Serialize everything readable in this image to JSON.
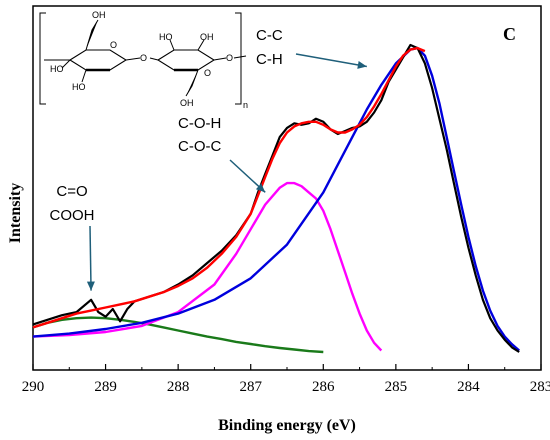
{
  "chart_data": {
    "type": "line",
    "title": "",
    "panel_label": "C",
    "xlabel": "Binding energy (eV)",
    "ylabel": "Intensity",
    "xlim": [
      290,
      283
    ],
    "x_reversed": true,
    "x_ticks": [
      "290",
      "289",
      "288",
      "287",
      "286",
      "285",
      "284",
      "283"
    ],
    "y_ticks": [],
    "ylim": [
      0,
      100
    ],
    "grid": false,
    "legend": "none",
    "annotations": [
      {
        "lines": [
          "C-C",
          "C-H"
        ],
        "arrow_to": {
          "x": 285.4,
          "y": 93
        }
      },
      {
        "lines": [
          "C-O-H",
          "C-O-C"
        ],
        "arrow_to": {
          "x": 286.8,
          "y": 52
        }
      },
      {
        "lines": [
          "C=O",
          "COOH"
        ],
        "arrow_to": {
          "x": 289.2,
          "y": 20
        }
      }
    ],
    "structure_labels": {
      "oh": "OH",
      "ho": "HO",
      "o": "O",
      "n": "n"
    },
    "series": [
      {
        "name": "",
        "role": "measured",
        "color": "#000000",
        "x": [
          290.0,
          289.8,
          289.6,
          289.4,
          289.2,
          289.1,
          289.0,
          288.9,
          288.8,
          288.7,
          288.6,
          288.4,
          288.2,
          288.0,
          287.8,
          287.6,
          287.4,
          287.2,
          287.0,
          286.9,
          286.8,
          286.7,
          286.6,
          286.5,
          286.4,
          286.3,
          286.2,
          286.1,
          286.0,
          285.9,
          285.8,
          285.7,
          285.6,
          285.5,
          285.4,
          285.3,
          285.2,
          285.1,
          285.0,
          284.9,
          284.8,
          284.7,
          284.6,
          284.5,
          284.4,
          284.3,
          284.2,
          284.1,
          284.0,
          283.9,
          283.8,
          283.7,
          283.6,
          283.5,
          283.4,
          283.3
        ],
        "y": [
          9.0,
          10.5,
          12.0,
          13.0,
          17.0,
          13.0,
          11.5,
          14.0,
          10.0,
          14.0,
          16.5,
          18.0,
          19.5,
          22.0,
          25.0,
          29.0,
          33.0,
          38.0,
          45.0,
          52.0,
          58.0,
          64.0,
          70.0,
          73.0,
          74.5,
          74.0,
          74.5,
          76.0,
          75.0,
          72.5,
          71.0,
          72.0,
          73.0,
          73.5,
          75.0,
          78.0,
          82.0,
          88.0,
          92.0,
          96.0,
          100.0,
          99.0,
          94.0,
          86.0,
          76.0,
          66.0,
          55.0,
          44.0,
          34.0,
          25.0,
          17.0,
          11.0,
          7.0,
          4.0,
          1.5,
          0.0
        ]
      },
      {
        "name": "",
        "role": "envelope",
        "color": "#ff0000",
        "x": [
          290.0,
          289.8,
          289.6,
          289.4,
          289.2,
          289.0,
          288.8,
          288.6,
          288.4,
          288.2,
          288.0,
          287.8,
          287.6,
          287.4,
          287.2,
          287.0,
          286.9,
          286.8,
          286.7,
          286.6,
          286.5,
          286.4,
          286.3,
          286.2,
          286.1,
          286.0,
          285.9,
          285.8,
          285.7,
          285.6,
          285.5,
          285.4,
          285.3,
          285.2,
          285.1,
          285.0,
          284.9,
          284.8,
          284.7,
          284.6
        ],
        "y": [
          8.0,
          9.5,
          11.0,
          12.5,
          13.5,
          14.5,
          15.5,
          16.5,
          18.0,
          19.5,
          21.5,
          24.0,
          27.5,
          32.0,
          37.5,
          45.0,
          51.0,
          57.0,
          63.0,
          68.0,
          71.5,
          73.5,
          74.5,
          75.0,
          75.0,
          74.0,
          72.5,
          71.5,
          71.5,
          72.5,
          74.0,
          76.5,
          80.0,
          84.0,
          88.5,
          93.0,
          96.5,
          98.5,
          99.0,
          98.0
        ]
      },
      {
        "name": "",
        "role": "C-C/C-H component",
        "color": "#0000dd",
        "x": [
          290.0,
          289.5,
          289.0,
          288.5,
          288.0,
          287.5,
          287.0,
          286.5,
          286.0,
          285.8,
          285.6,
          285.4,
          285.2,
          285.0,
          284.8,
          284.7,
          284.6,
          284.5,
          284.4,
          284.3,
          284.2,
          284.1,
          284.0,
          283.9,
          283.8,
          283.7,
          283.6,
          283.5,
          283.4,
          283.3
        ],
        "y": [
          5.0,
          6.0,
          7.5,
          9.5,
          12.5,
          17.0,
          24.0,
          35.0,
          52.0,
          61.0,
          70.0,
          79.0,
          87.0,
          94.0,
          98.5,
          99.0,
          96.5,
          90.0,
          81.0,
          70.0,
          59.0,
          48.0,
          37.5,
          28.0,
          20.0,
          13.5,
          8.5,
          5.0,
          2.5,
          0.5
        ]
      },
      {
        "name": "",
        "role": "C-O-H/C-O-C component",
        "color": "#ff00ff",
        "x": [
          290.0,
          289.5,
          289.0,
          288.5,
          288.0,
          287.5,
          287.2,
          287.0,
          286.8,
          286.6,
          286.5,
          286.4,
          286.3,
          286.2,
          286.1,
          286.0,
          285.9,
          285.8,
          285.7,
          285.6,
          285.5,
          285.4,
          285.3,
          285.2
        ],
        "y": [
          5.0,
          5.5,
          6.5,
          8.5,
          13.0,
          22.0,
          32.0,
          40.0,
          48.0,
          53.5,
          55.0,
          55.0,
          54.0,
          52.0,
          50.0,
          46.0,
          40.0,
          33.0,
          26.0,
          19.0,
          12.5,
          7.0,
          3.0,
          0.5
        ]
      },
      {
        "name": "",
        "role": "C=O/COOH component",
        "color": "#1a7a1a",
        "x": [
          290.0,
          289.8,
          289.6,
          289.4,
          289.2,
          289.0,
          288.8,
          288.6,
          288.4,
          288.2,
          288.0,
          287.8,
          287.6,
          287.4,
          287.2,
          287.0,
          286.8,
          286.6,
          286.4,
          286.2,
          286.0
        ],
        "y": [
          8.0,
          9.5,
          10.5,
          11.0,
          11.2,
          11.0,
          10.5,
          9.8,
          9.0,
          8.0,
          7.0,
          6.0,
          5.0,
          4.2,
          3.3,
          2.6,
          1.9,
          1.3,
          0.8,
          0.3,
          0.0
        ]
      }
    ]
  }
}
